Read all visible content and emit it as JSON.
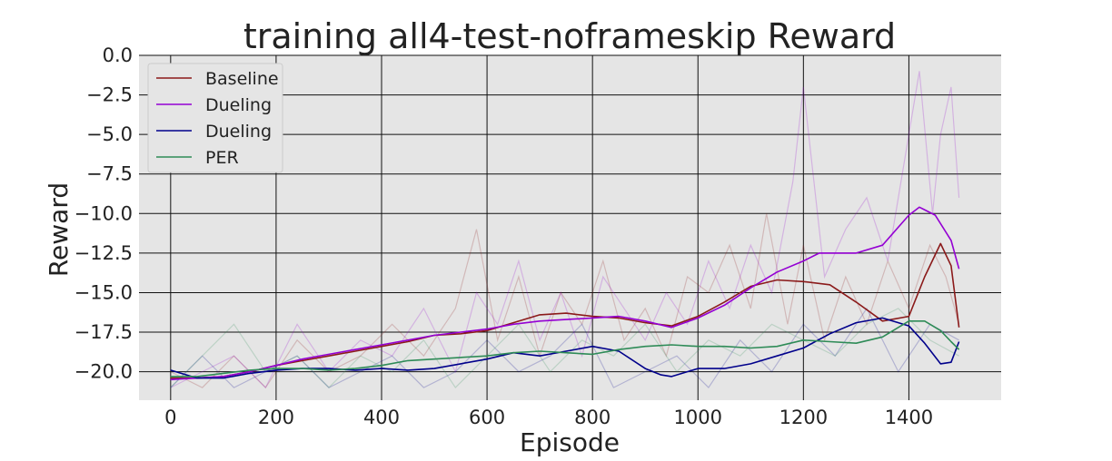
{
  "chart_data": {
    "type": "line",
    "title": "training all4-test-noframeskip Reward",
    "xlabel": "Episode",
    "ylabel": "Reward",
    "xlim": [
      -60,
      1575
    ],
    "ylim": [
      -21.8,
      0
    ],
    "x_ticks": [
      0,
      200,
      400,
      600,
      800,
      1000,
      1200,
      1400
    ],
    "x_tick_labels": [
      "0",
      "200",
      "400",
      "600",
      "800",
      "1000",
      "1200",
      "1400"
    ],
    "y_ticks": [
      0,
      -2.5,
      -5,
      -7.5,
      -10,
      -12.5,
      -15,
      -17.5,
      -20
    ],
    "y_tick_labels": [
      "0.0",
      "−2.5",
      "−5.0",
      "−7.5",
      "−10.0",
      "−12.5",
      "−15.0",
      "−17.5",
      "−20.0"
    ],
    "grid": true,
    "legend_position": "top-left",
    "background_color": "#e5e5e5",
    "series": [
      {
        "name": "Baseline",
        "color": "#8b1a1a",
        "smoothed": {
          "x": [
            0,
            50,
            100,
            150,
            200,
            250,
            300,
            350,
            400,
            450,
            500,
            550,
            600,
            650,
            700,
            750,
            800,
            850,
            900,
            950,
            1000,
            1050,
            1100,
            1150,
            1200,
            1250,
            1300,
            1350,
            1400,
            1430,
            1460,
            1480,
            1495
          ],
          "y": [
            -20.4,
            -20.4,
            -20.3,
            -20.0,
            -19.6,
            -19.3,
            -19.0,
            -18.7,
            -18.4,
            -18.1,
            -17.7,
            -17.6,
            -17.4,
            -16.9,
            -16.4,
            -16.3,
            -16.5,
            -16.6,
            -16.9,
            -17.1,
            -16.5,
            -15.6,
            -14.6,
            -14.2,
            -14.3,
            -14.5,
            -15.6,
            -16.8,
            -16.5,
            -14.0,
            -11.9,
            -13.3,
            -17.2
          ]
        },
        "raw_spikes": {
          "x": [
            0,
            60,
            120,
            180,
            240,
            300,
            360,
            420,
            480,
            540,
            580,
            620,
            660,
            700,
            740,
            780,
            820,
            860,
            900,
            940,
            980,
            1020,
            1060,
            1100,
            1130,
            1170,
            1200,
            1240,
            1280,
            1320,
            1360,
            1400,
            1440,
            1470,
            1495
          ],
          "y": [
            -20,
            -21,
            -19,
            -21,
            -18,
            -20,
            -19,
            -17,
            -19,
            -16,
            -11,
            -18,
            -14,
            -19,
            -15,
            -17,
            -13,
            -18,
            -16,
            -19,
            -14,
            -15,
            -12,
            -16,
            -10,
            -17,
            -12,
            -18,
            -14,
            -17,
            -13,
            -16,
            -12,
            -14,
            -17
          ]
        }
      },
      {
        "name": "Dueling",
        "color": "#9400d3",
        "smoothed": {
          "x": [
            0,
            50,
            100,
            150,
            200,
            250,
            300,
            350,
            400,
            450,
            500,
            550,
            600,
            650,
            700,
            750,
            800,
            850,
            900,
            950,
            1000,
            1050,
            1100,
            1150,
            1200,
            1230,
            1250,
            1300,
            1350,
            1400,
            1420,
            1450,
            1480,
            1495
          ],
          "y": [
            -20.5,
            -20.4,
            -20.3,
            -20.0,
            -19.6,
            -19.2,
            -18.9,
            -18.6,
            -18.3,
            -18.0,
            -17.7,
            -17.5,
            -17.3,
            -17.0,
            -16.8,
            -16.7,
            -16.6,
            -16.5,
            -16.8,
            -17.2,
            -16.6,
            -15.8,
            -14.7,
            -13.7,
            -13.0,
            -12.5,
            -12.5,
            -12.5,
            -12.0,
            -10.1,
            -9.6,
            -10.1,
            -11.7,
            -13.5
          ]
        },
        "raw_spikes": {
          "x": [
            0,
            60,
            120,
            180,
            240,
            300,
            360,
            420,
            480,
            540,
            580,
            620,
            660,
            700,
            740,
            780,
            820,
            860,
            900,
            940,
            980,
            1020,
            1060,
            1100,
            1140,
            1180,
            1200,
            1240,
            1280,
            1320,
            1360,
            1390,
            1420,
            1445,
            1460,
            1480,
            1495
          ],
          "y": [
            -21,
            -20,
            -19,
            -21,
            -17,
            -20,
            -18,
            -19,
            -16,
            -20,
            -15,
            -17,
            -13,
            -18,
            -15,
            -19,
            -14,
            -16,
            -18,
            -15,
            -17,
            -13,
            -16,
            -12,
            -15,
            -8,
            -2,
            -14,
            -11,
            -9,
            -13,
            -7,
            -1,
            -10,
            -5,
            -2,
            -9
          ]
        }
      },
      {
        "name": "Dueling",
        "color": "#00008b",
        "smoothed": {
          "x": [
            0,
            50,
            100,
            150,
            200,
            250,
            300,
            350,
            400,
            450,
            500,
            550,
            600,
            650,
            700,
            750,
            800,
            850,
            900,
            930,
            950,
            1000,
            1050,
            1100,
            1150,
            1200,
            1250,
            1300,
            1350,
            1400,
            1430,
            1460,
            1480,
            1495
          ],
          "y": [
            -19.9,
            -20.4,
            -20.4,
            -20.1,
            -19.9,
            -19.8,
            -19.8,
            -19.9,
            -19.8,
            -19.9,
            -19.8,
            -19.5,
            -19.2,
            -18.8,
            -19.0,
            -18.7,
            -18.4,
            -18.7,
            -19.8,
            -20.2,
            -20.3,
            -19.8,
            -19.8,
            -19.5,
            -19.0,
            -18.5,
            -17.6,
            -16.9,
            -16.6,
            -17.1,
            -18.2,
            -19.5,
            -19.4,
            -18.1
          ]
        },
        "raw_spikes": {
          "x": [
            0,
            60,
            120,
            180,
            240,
            300,
            360,
            420,
            480,
            540,
            600,
            660,
            720,
            780,
            840,
            900,
            960,
            1020,
            1080,
            1140,
            1200,
            1260,
            1320,
            1380,
            1440,
            1495
          ],
          "y": [
            -21,
            -19,
            -21,
            -20,
            -19,
            -21,
            -20,
            -19,
            -21,
            -20,
            -18,
            -20,
            -19,
            -17,
            -21,
            -20,
            -19,
            -21,
            -18,
            -20,
            -17,
            -19,
            -16,
            -20,
            -17,
            -18
          ]
        }
      },
      {
        "name": "PER",
        "color": "#2e8b57",
        "smoothed": {
          "x": [
            0,
            50,
            100,
            150,
            200,
            250,
            300,
            350,
            400,
            450,
            500,
            550,
            600,
            650,
            700,
            750,
            800,
            850,
            900,
            950,
            1000,
            1050,
            1100,
            1150,
            1200,
            1250,
            1300,
            1350,
            1400,
            1430,
            1460,
            1480,
            1495
          ],
          "y": [
            -20.3,
            -20.3,
            -20.1,
            -19.9,
            -19.8,
            -19.8,
            -19.9,
            -19.8,
            -19.6,
            -19.3,
            -19.2,
            -19.1,
            -19.0,
            -18.8,
            -18.7,
            -18.8,
            -18.9,
            -18.6,
            -18.4,
            -18.3,
            -18.4,
            -18.4,
            -18.5,
            -18.4,
            -18.0,
            -18.1,
            -18.2,
            -17.8,
            -16.8,
            -16.8,
            -17.4,
            -18.1,
            -18.6
          ]
        },
        "raw_spikes": {
          "x": [
            0,
            60,
            120,
            180,
            240,
            300,
            360,
            420,
            480,
            540,
            600,
            660,
            720,
            780,
            840,
            900,
            960,
            1020,
            1080,
            1140,
            1200,
            1260,
            1320,
            1380,
            1440,
            1495
          ],
          "y": [
            -21,
            -19,
            -17,
            -20,
            -19,
            -21,
            -19,
            -20,
            -18,
            -21,
            -19,
            -17,
            -20,
            -18,
            -19,
            -17,
            -20,
            -18,
            -19,
            -17,
            -18,
            -19,
            -17,
            -16,
            -18,
            -19
          ]
        }
      }
    ]
  }
}
